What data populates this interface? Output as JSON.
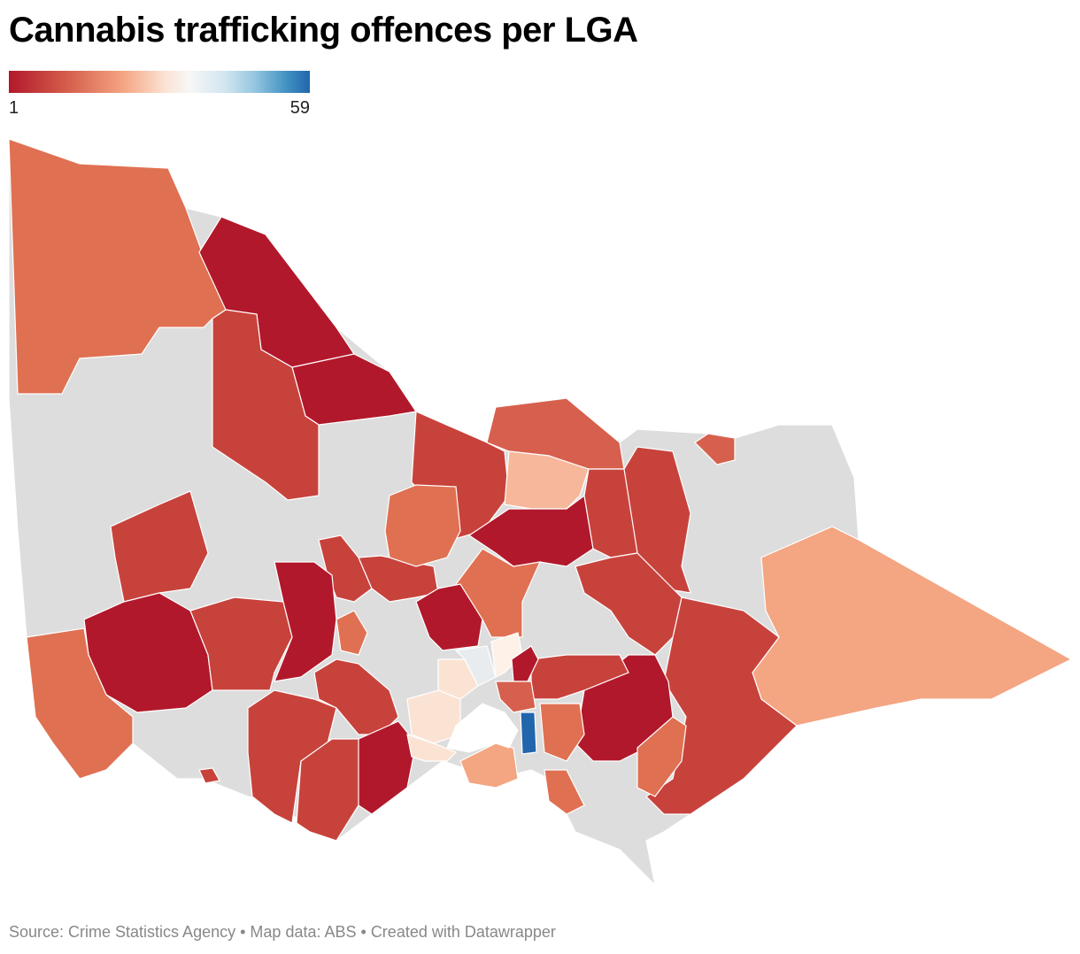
{
  "title": "Cannabis trafficking offences per LGA",
  "legend": {
    "min_label": "1",
    "max_label": "59",
    "colors": [
      "#b2182b",
      "#d6604d",
      "#f4a582",
      "#fbe3d4",
      "#f7f7f7",
      "#d1e5f0",
      "#92c5de",
      "#4393c3",
      "#2166ac"
    ]
  },
  "footer": {
    "source": "Source: Crime Statistics Agency",
    "sep1": " • ",
    "map_data": "Map data: ABS",
    "sep2": " • ",
    "credit": "Created with Datawrapper"
  },
  "colors": {
    "dark_red": "#b2182b",
    "red": "#c8423c",
    "orange_red": "#e07052",
    "salmon": "#f4a582",
    "light_salmon": "#f7b79a",
    "pale": "#fbe3d4",
    "very_pale": "#fdf1e8",
    "pale_blue": "#e8ecee",
    "blue": "#2166ac",
    "no_data": "#dddddd",
    "water": "#ffffff"
  }
}
